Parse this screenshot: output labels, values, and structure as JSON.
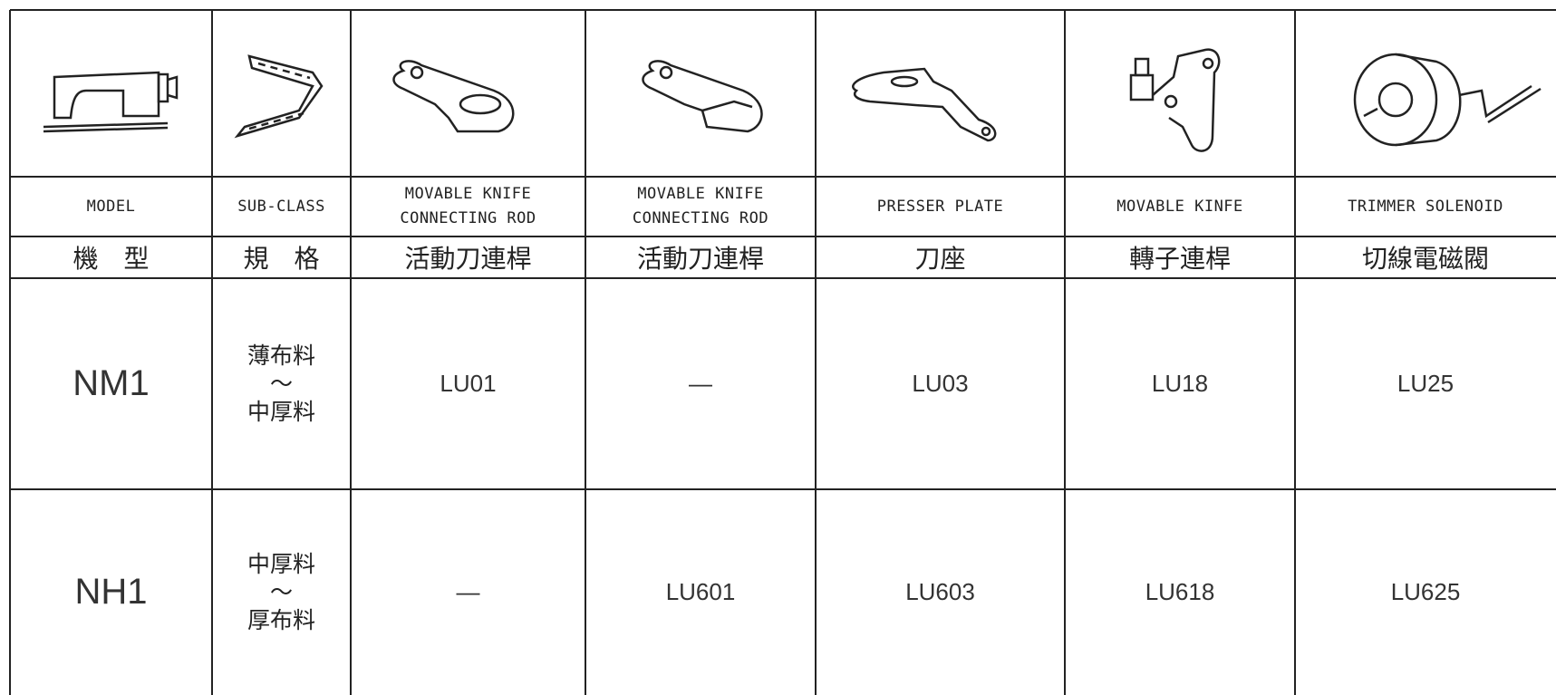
{
  "table": {
    "columns": [
      {
        "en": [
          "MODEL"
        ],
        "zh": "機　型"
      },
      {
        "en": [
          "SUB-CLASS"
        ],
        "zh": "規　格"
      },
      {
        "en": [
          "MOVABLE KNIFE",
          "CONNECTING ROD"
        ],
        "zh": "活動刀連桿"
      },
      {
        "en": [
          "MOVABLE KNIFE",
          "CONNECTING ROD"
        ],
        "zh": "活動刀連桿"
      },
      {
        "en": [
          "PRESSER PLATE"
        ],
        "zh": "刀座"
      },
      {
        "en": [
          "MOVABLE KINFE"
        ],
        "zh": "轉子連桿"
      },
      {
        "en": [
          "TRIMMER SOLENOID"
        ],
        "zh": "切線電磁閥"
      }
    ],
    "rows": [
      {
        "model": "NM1",
        "sub_class": [
          "薄布料",
          "～",
          "中厚料"
        ],
        "parts": [
          "LU01",
          "—",
          "LU03",
          "LU18",
          "LU25"
        ]
      },
      {
        "model": "NH1",
        "sub_class": [
          "中厚料",
          "～",
          "厚布料"
        ],
        "parts": [
          "—",
          "LU601",
          "LU603",
          "LU618",
          "LU625"
        ]
      }
    ]
  }
}
